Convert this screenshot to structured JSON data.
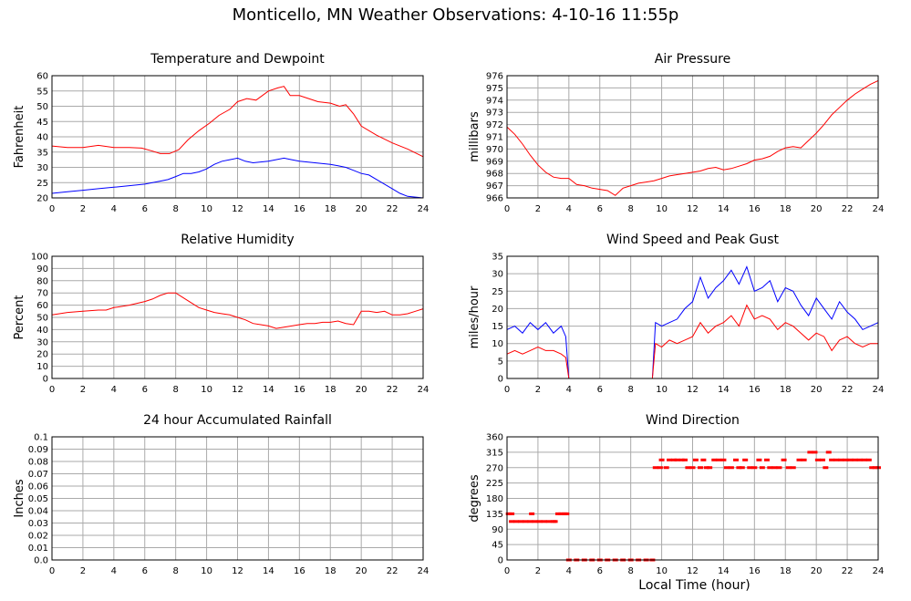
{
  "header": {
    "title": "Monticello, MN Weather Observations: 4-10-16 11:55p"
  },
  "footer": {
    "xaxis_title": "Local Time (hour)"
  },
  "chart_data": [
    {
      "type": "line",
      "title": "Temperature and Dewpoint",
      "xlabel": "",
      "ylabel": "Fahrenheit",
      "xlim": [
        0,
        24
      ],
      "ylim": [
        20,
        60
      ],
      "xticks": [
        0,
        2,
        4,
        6,
        8,
        10,
        12,
        14,
        16,
        18,
        20,
        22,
        24
      ],
      "yticks": [
        20,
        25,
        30,
        35,
        40,
        45,
        50,
        55,
        60
      ],
      "grid": true,
      "series": [
        {
          "color": "#ff0000",
          "x": [
            0,
            1,
            2,
            3,
            4,
            5,
            5.8,
            6.5,
            7,
            7.6,
            8.2,
            8.8,
            9.5,
            10.2,
            10.8,
            11.5,
            12,
            12.6,
            13.2,
            14,
            14.6,
            15,
            15.4,
            16,
            16.6,
            17.2,
            18,
            18.6,
            19,
            19.5,
            20,
            21,
            22,
            23,
            24
          ],
          "y": [
            37,
            36.5,
            36.5,
            37.2,
            36.5,
            36.5,
            36.3,
            35.3,
            34.5,
            34.5,
            35.8,
            39,
            42,
            44.5,
            47,
            49,
            51.5,
            52.5,
            52,
            55,
            56,
            56.5,
            53.5,
            53.5,
            52.5,
            51.5,
            51,
            50,
            50.5,
            47.5,
            43.5,
            40.5,
            38,
            36,
            33.5
          ]
        },
        {
          "color": "#0000ff",
          "x": [
            0,
            1,
            2,
            3,
            4,
            5,
            6,
            7,
            7.5,
            8,
            8.5,
            9,
            9.5,
            10,
            10.5,
            11,
            11.5,
            12,
            12.5,
            13,
            14,
            15,
            15.5,
            16,
            17,
            18,
            18.5,
            19,
            19.5,
            20,
            20.5,
            21,
            21.5,
            22,
            22.5,
            23,
            24
          ],
          "y": [
            21.5,
            22,
            22.5,
            23,
            23.5,
            24,
            24.5,
            25.5,
            26,
            27,
            28,
            28,
            28.5,
            29.5,
            31,
            32,
            32.5,
            33,
            32,
            31.5,
            32,
            33,
            32.5,
            32,
            31.5,
            31,
            30.5,
            30,
            29,
            28,
            27.5,
            26,
            24.5,
            23,
            21.5,
            20.5,
            20
          ]
        }
      ]
    },
    {
      "type": "line",
      "title": "Air Pressure",
      "xlabel": "",
      "ylabel": "millibars",
      "xlim": [
        0,
        24
      ],
      "ylim": [
        966,
        976
      ],
      "xticks": [
        0,
        2,
        4,
        6,
        8,
        10,
        12,
        14,
        16,
        18,
        20,
        22,
        24
      ],
      "yticks": [
        966,
        967,
        968,
        969,
        970,
        971,
        972,
        973,
        974,
        975,
        976
      ],
      "grid": true,
      "series": [
        {
          "color": "#ff0000",
          "x": [
            0,
            0.5,
            1,
            1.5,
            2,
            2.5,
            3,
            3.5,
            4,
            4.5,
            5,
            5.5,
            6,
            6.5,
            7,
            7.5,
            8,
            8.5,
            9,
            9.5,
            10,
            10.5,
            11,
            11.5,
            12,
            12.5,
            13,
            13.5,
            14,
            14.5,
            15,
            15.5,
            16,
            16.5,
            17,
            17.5,
            18,
            18.5,
            19,
            19.5,
            20,
            20.5,
            21,
            21.5,
            22,
            22.5,
            23,
            23.5,
            24
          ],
          "y": [
            971.8,
            971.2,
            970.4,
            969.5,
            968.7,
            968.1,
            967.7,
            967.6,
            967.6,
            967.1,
            967,
            966.8,
            966.7,
            966.6,
            966.2,
            966.8,
            967,
            967.2,
            967.3,
            967.4,
            967.6,
            967.8,
            967.9,
            968,
            968.1,
            968.2,
            968.4,
            968.5,
            968.3,
            968.4,
            968.6,
            968.8,
            969.1,
            969.2,
            969.4,
            969.8,
            970.1,
            970.2,
            970.1,
            970.7,
            971.3,
            972,
            972.8,
            973.4,
            974,
            974.5,
            974.9,
            975.3,
            975.6
          ]
        }
      ]
    },
    {
      "type": "line",
      "title": "Relative Humidity",
      "xlabel": "",
      "ylabel": "Percent",
      "xlim": [
        0,
        24
      ],
      "ylim": [
        0,
        100
      ],
      "xticks": [
        0,
        2,
        4,
        6,
        8,
        10,
        12,
        14,
        16,
        18,
        20,
        22,
        24
      ],
      "yticks": [
        0,
        10,
        20,
        30,
        40,
        50,
        60,
        70,
        80,
        90,
        100
      ],
      "grid": true,
      "series": [
        {
          "color": "#ff0000",
          "x": [
            0,
            1,
            2,
            3,
            3.5,
            4,
            5,
            6,
            6.5,
            7,
            7.5,
            8,
            8.5,
            9,
            9.5,
            10,
            10.5,
            11,
            11.5,
            12,
            12.5,
            13,
            13.5,
            14,
            14.5,
            15,
            15.5,
            16,
            16.5,
            17,
            17.5,
            18,
            18.5,
            19,
            19.5,
            20,
            20.5,
            21,
            21.5,
            22,
            22.5,
            23,
            23.5,
            24
          ],
          "y": [
            52,
            54,
            55,
            56,
            56,
            58,
            60,
            63,
            65,
            68,
            70,
            70,
            66,
            62,
            58,
            56,
            54,
            53,
            52,
            50,
            48,
            45,
            44,
            43,
            41,
            42,
            43,
            44,
            45,
            45,
            46,
            46,
            47,
            45,
            44,
            55,
            55,
            54,
            55,
            52,
            52,
            53,
            55,
            57
          ]
        }
      ]
    },
    {
      "type": "line",
      "title": "Wind Speed and Peak Gust",
      "xlabel": "",
      "ylabel": "miles/hour",
      "xlim": [
        0,
        24
      ],
      "ylim": [
        0,
        35
      ],
      "xticks": [
        0,
        2,
        4,
        6,
        8,
        10,
        12,
        14,
        16,
        18,
        20,
        22,
        24
      ],
      "yticks": [
        0,
        5,
        10,
        15,
        20,
        25,
        30,
        35
      ],
      "grid": true,
      "series": [
        {
          "color": "#0000ff",
          "x": [
            0,
            0.5,
            1,
            1.5,
            2,
            2.5,
            3,
            3.5,
            3.8,
            4,
            9.4,
            9.6,
            10,
            10.5,
            11,
            11.5,
            12,
            12.5,
            13,
            13.5,
            14,
            14.5,
            15,
            15.5,
            16,
            16.5,
            17,
            17.5,
            18,
            18.5,
            19,
            19.5,
            20,
            20.5,
            21,
            21.5,
            22,
            22.5,
            23,
            23.5,
            24
          ],
          "y": [
            14,
            15,
            13,
            16,
            14,
            16,
            13,
            15,
            12,
            0,
            0,
            16,
            15,
            16,
            17,
            20,
            22,
            29,
            23,
            26,
            28,
            31,
            27,
            32,
            25,
            26,
            28,
            22,
            26,
            25,
            21,
            18,
            23,
            20,
            17,
            22,
            19,
            17,
            14,
            15,
            16
          ]
        },
        {
          "color": "#ff0000",
          "x": [
            0,
            0.5,
            1,
            1.5,
            2,
            2.5,
            3,
            3.5,
            3.8,
            4,
            9.4,
            9.6,
            10,
            10.5,
            11,
            11.5,
            12,
            12.5,
            13,
            13.5,
            14,
            14.5,
            15,
            15.5,
            16,
            16.5,
            17,
            17.5,
            18,
            18.5,
            19,
            19.5,
            20,
            20.5,
            21,
            21.5,
            22,
            22.5,
            23,
            23.5,
            24
          ],
          "y": [
            7,
            8,
            7,
            8,
            9,
            8,
            8,
            7,
            6,
            0,
            0,
            10,
            9,
            11,
            10,
            11,
            12,
            16,
            13,
            15,
            16,
            18,
            15,
            21,
            17,
            18,
            17,
            14,
            16,
            15,
            13,
            11,
            13,
            12,
            8,
            11,
            12,
            10,
            9,
            10,
            10
          ]
        }
      ]
    },
    {
      "type": "line",
      "title": "24 hour Accumulated Rainfall",
      "xlabel": "",
      "ylabel": "Inches",
      "xlim": [
        0,
        24
      ],
      "ylim": [
        0,
        0.1
      ],
      "xticks": [
        0,
        2,
        4,
        6,
        8,
        10,
        12,
        14,
        16,
        18,
        20,
        22,
        24
      ],
      "yticks": [
        "0.0",
        "0.01",
        "0.02",
        "0.03",
        "0.04",
        "0.05",
        "0.06",
        "0.07",
        "0.08",
        "0.09",
        "0.1"
      ],
      "grid": true,
      "series": [
        {
          "color": "#ff0000",
          "x": [
            0,
            24
          ],
          "y": [
            0,
            0
          ]
        }
      ]
    },
    {
      "type": "scatter",
      "title": "Wind Direction",
      "xlabel": "Local Time (hour)",
      "ylabel": "degrees",
      "xlim": [
        0,
        24
      ],
      "ylim": [
        0,
        360
      ],
      "xticks": [
        0,
        2,
        4,
        6,
        8,
        10,
        12,
        14,
        16,
        18,
        20,
        22,
        24
      ],
      "yticks": [
        0,
        45,
        90,
        135,
        180,
        225,
        270,
        315,
        360
      ],
      "grid": true,
      "series": [
        {
          "color": "#ff0000",
          "points": [
            [
              0.1,
              135
            ],
            [
              0.3,
              135
            ],
            [
              0.3,
              112.5
            ],
            [
              0.6,
              112.5
            ],
            [
              0.9,
              112.5
            ],
            [
              1.2,
              112.5
            ],
            [
              1.5,
              112.5
            ],
            [
              1.6,
              135
            ],
            [
              1.8,
              112.5
            ],
            [
              2.1,
              112.5
            ],
            [
              2.4,
              112.5
            ],
            [
              2.7,
              112.5
            ],
            [
              3.0,
              112.5
            ],
            [
              3.1,
              112.5
            ],
            [
              3.3,
              135
            ],
            [
              3.5,
              135
            ],
            [
              3.7,
              135
            ],
            [
              3.85,
              135
            ],
            [
              4.0,
              0
            ],
            [
              4.5,
              0
            ],
            [
              5.0,
              0
            ],
            [
              5.5,
              0
            ],
            [
              6.0,
              0
            ],
            [
              6.5,
              0
            ],
            [
              7.0,
              0
            ],
            [
              7.5,
              0
            ],
            [
              8.0,
              0
            ],
            [
              8.5,
              0
            ],
            [
              9.0,
              0
            ],
            [
              9.4,
              0
            ],
            [
              9.6,
              270
            ],
            [
              9.9,
              270
            ],
            [
              10.0,
              292.5
            ],
            [
              10.3,
              270
            ],
            [
              10.5,
              292.5
            ],
            [
              10.8,
              292.5
            ],
            [
              11.0,
              292.5
            ],
            [
              11.3,
              292.5
            ],
            [
              11.5,
              292.5
            ],
            [
              11.7,
              270
            ],
            [
              12.0,
              270
            ],
            [
              12.2,
              292.5
            ],
            [
              12.5,
              270
            ],
            [
              12.7,
              292.5
            ],
            [
              12.9,
              270
            ],
            [
              13.1,
              270
            ],
            [
              13.4,
              292.5
            ],
            [
              13.7,
              292.5
            ],
            [
              14.0,
              292.5
            ],
            [
              14.2,
              270
            ],
            [
              14.5,
              270
            ],
            [
              14.8,
              292.5
            ],
            [
              15.0,
              270
            ],
            [
              15.2,
              270
            ],
            [
              15.4,
              292.5
            ],
            [
              15.7,
              270
            ],
            [
              16.0,
              270
            ],
            [
              16.3,
              292.5
            ],
            [
              16.5,
              270
            ],
            [
              16.8,
              292.5
            ],
            [
              17.0,
              270
            ],
            [
              17.3,
              270
            ],
            [
              17.6,
              270
            ],
            [
              17.9,
              292.5
            ],
            [
              18.2,
              270
            ],
            [
              18.5,
              270
            ],
            [
              18.9,
              292.5
            ],
            [
              19.2,
              292.5
            ],
            [
              19.6,
              315
            ],
            [
              19.9,
              315
            ],
            [
              20.1,
              292.5
            ],
            [
              20.4,
              292.5
            ],
            [
              20.6,
              270
            ],
            [
              20.8,
              315
            ],
            [
              21.0,
              292.5
            ],
            [
              21.3,
              292.5
            ],
            [
              21.6,
              292.5
            ],
            [
              21.9,
              292.5
            ],
            [
              22.2,
              292.5
            ],
            [
              22.5,
              292.5
            ],
            [
              22.8,
              292.5
            ],
            [
              23.1,
              292.5
            ],
            [
              23.4,
              292.5
            ],
            [
              23.6,
              270
            ],
            [
              23.8,
              270
            ],
            [
              24.0,
              270
            ]
          ]
        }
      ]
    }
  ]
}
